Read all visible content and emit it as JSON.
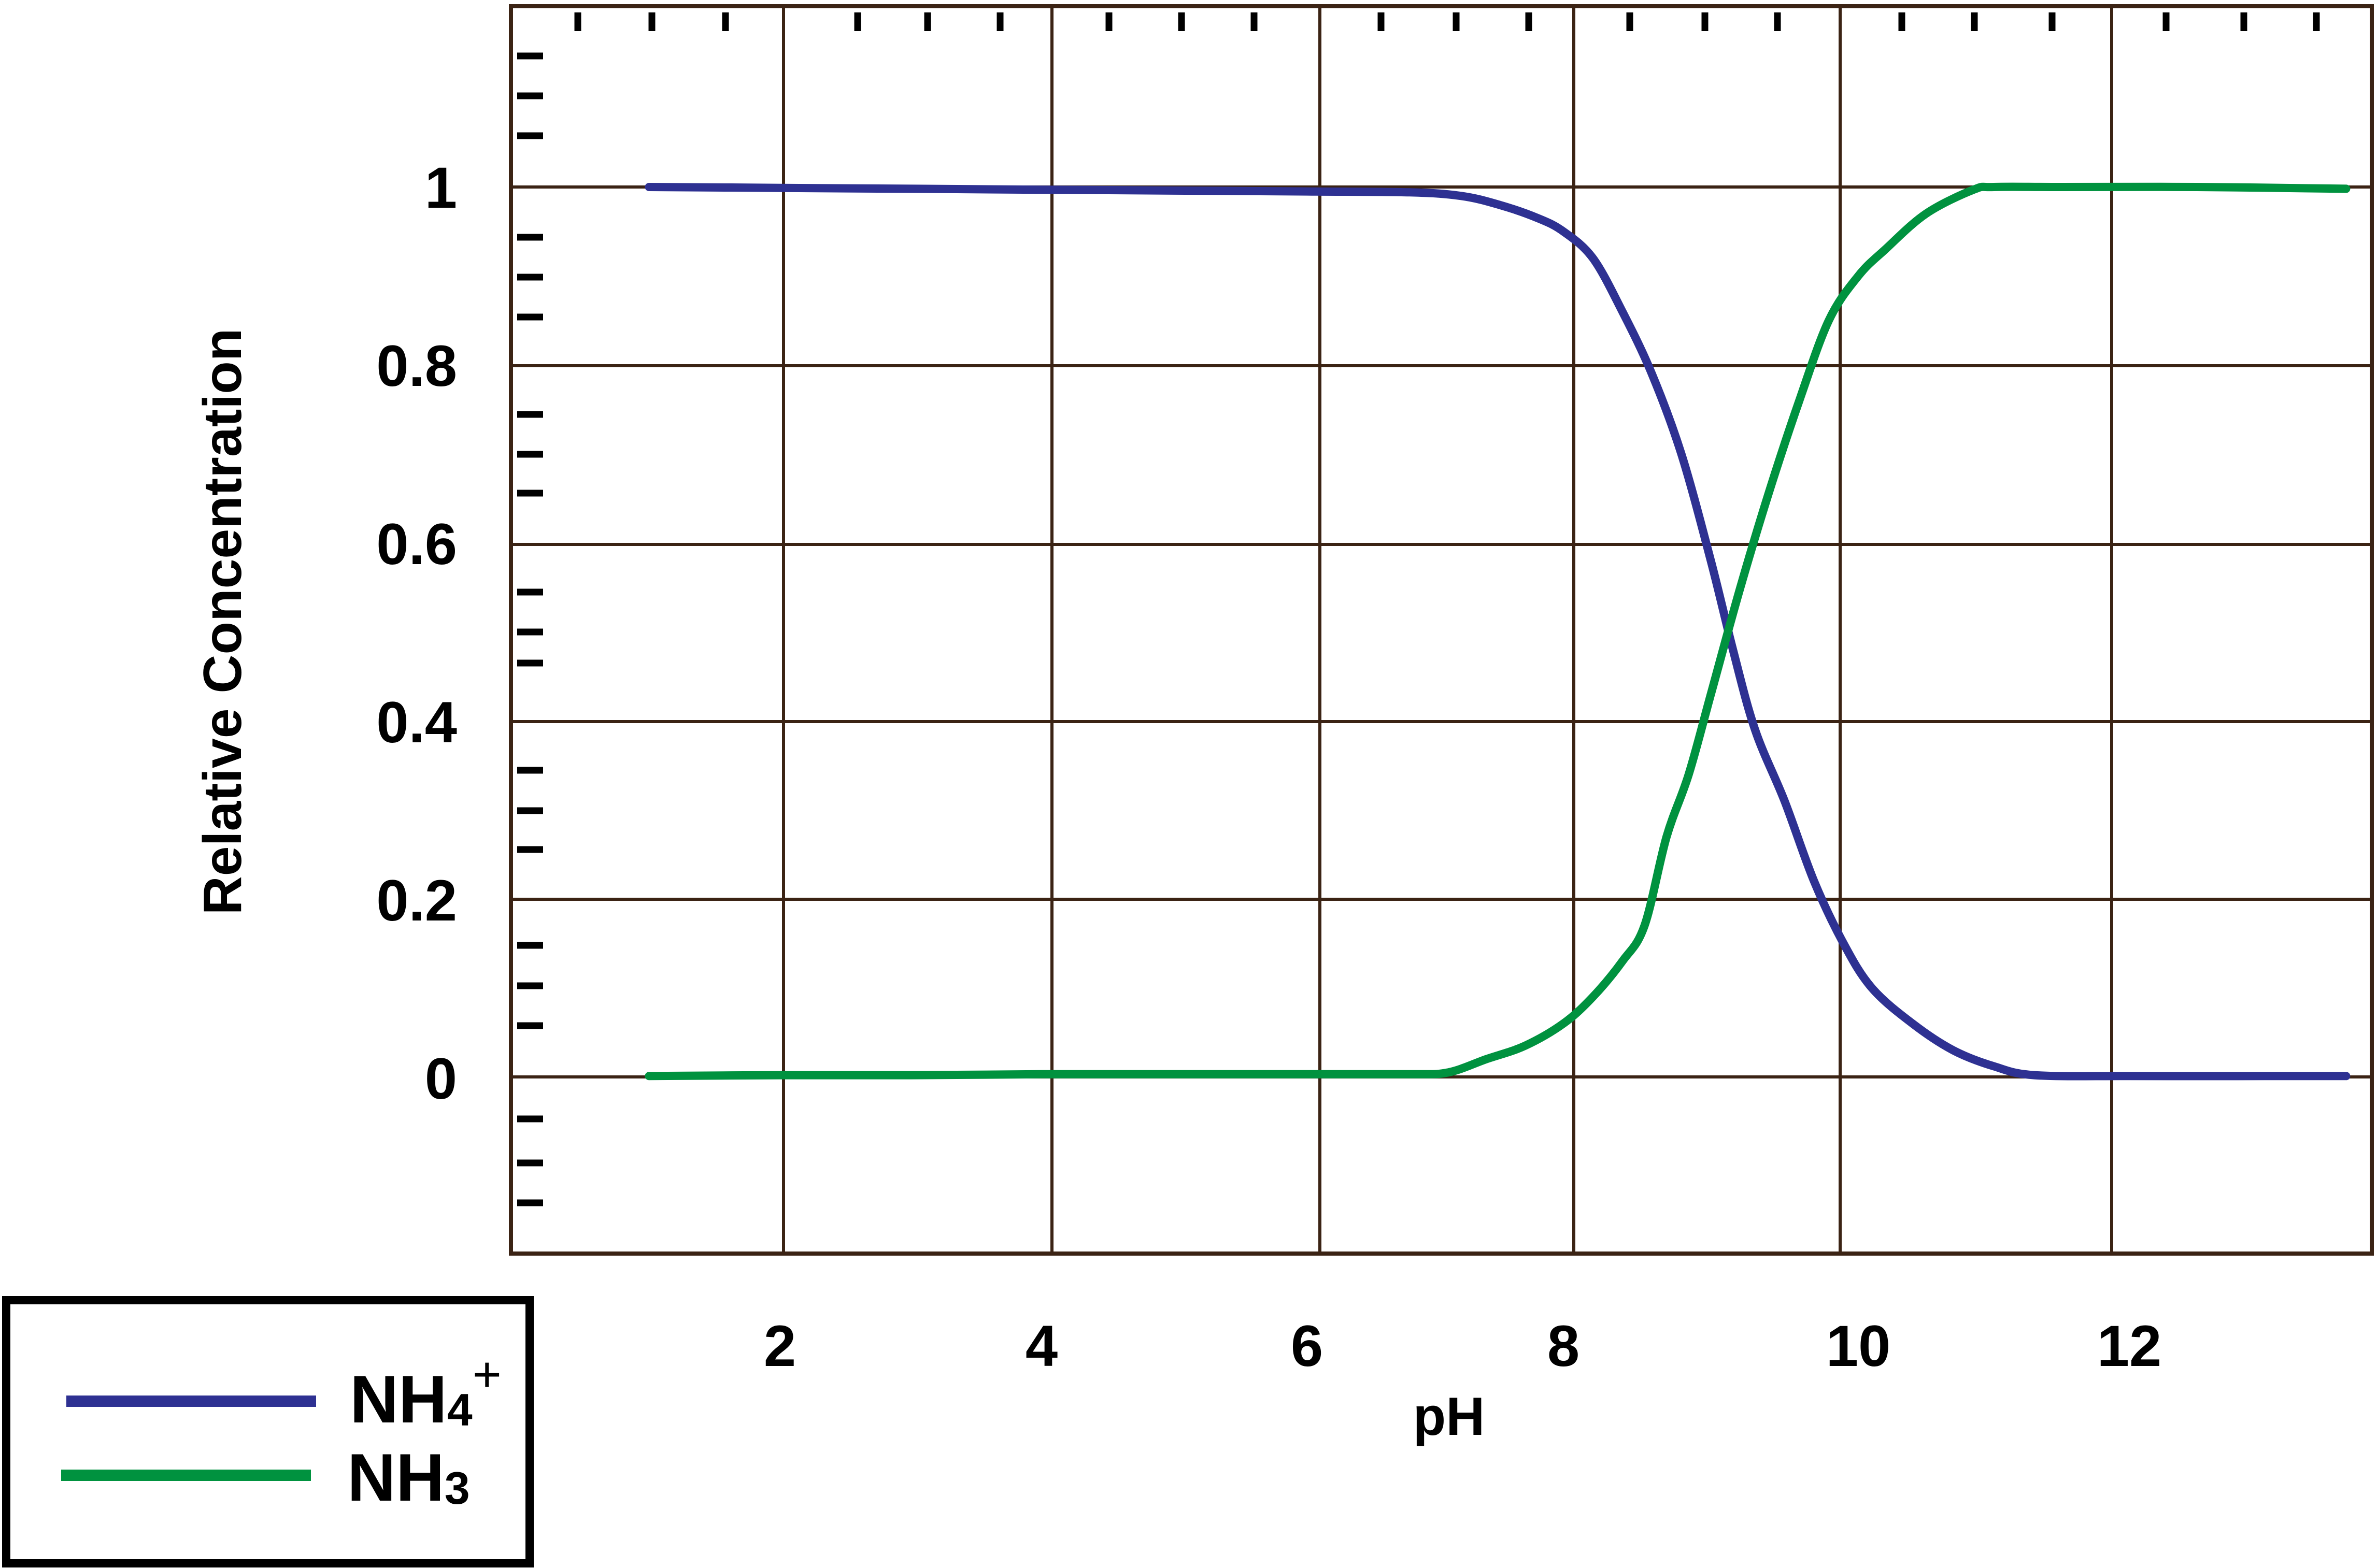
{
  "chart_data": {
    "type": "line",
    "xlabel": "pH",
    "ylabel": "Relative Concentration",
    "x_ticks": [
      "2",
      "4",
      "6",
      "8",
      "10",
      "12"
    ],
    "y_ticks": [
      "0",
      "0.2",
      "0.4",
      "0.6",
      "0.8",
      "1"
    ],
    "grid": true,
    "legend_position": "bottom-left",
    "series": [
      {
        "name_base": "NH",
        "name_sub": "4",
        "name_sup": "+",
        "color": "#2e3192",
        "points": [
          [
            1.0,
            1.0
          ],
          [
            2.0,
            0.999
          ],
          [
            3.0,
            0.998
          ],
          [
            4.0,
            0.997
          ],
          [
            5.0,
            0.996
          ],
          [
            6.0,
            0.995
          ],
          [
            6.8,
            0.994
          ],
          [
            7.2,
            0.99
          ],
          [
            7.5,
            0.98
          ],
          [
            7.8,
            0.965
          ],
          [
            8.0,
            0.95
          ],
          [
            8.2,
            0.92
          ],
          [
            8.4,
            0.86
          ],
          [
            8.6,
            0.79
          ],
          [
            8.8,
            0.7
          ],
          [
            9.0,
            0.58
          ],
          [
            9.15,
            0.48
          ],
          [
            9.3,
            0.39
          ],
          [
            9.5,
            0.31
          ],
          [
            9.7,
            0.22
          ],
          [
            9.9,
            0.15
          ],
          [
            10.1,
            0.1
          ],
          [
            10.4,
            0.06
          ],
          [
            10.7,
            0.03
          ],
          [
            11.0,
            0.012
          ],
          [
            11.3,
            0.002
          ],
          [
            12.0,
            0.001
          ],
          [
            13.0,
            0.001
          ],
          [
            13.6,
            0.001
          ]
        ]
      },
      {
        "name_base": "NH",
        "name_sub": "3",
        "name_sup": "",
        "color": "#00923f",
        "points": [
          [
            1.0,
            0.001
          ],
          [
            2.0,
            0.002
          ],
          [
            3.0,
            0.002
          ],
          [
            4.0,
            0.003
          ],
          [
            5.0,
            0.003
          ],
          [
            6.0,
            0.003
          ],
          [
            6.8,
            0.003
          ],
          [
            7.1,
            0.005
          ],
          [
            7.4,
            0.02
          ],
          [
            7.7,
            0.035
          ],
          [
            8.0,
            0.06
          ],
          [
            8.2,
            0.09
          ],
          [
            8.4,
            0.13
          ],
          [
            8.55,
            0.17
          ],
          [
            8.7,
            0.27
          ],
          [
            8.85,
            0.34
          ],
          [
            9.0,
            0.43
          ],
          [
            9.2,
            0.55
          ],
          [
            9.4,
            0.66
          ],
          [
            9.6,
            0.76
          ],
          [
            9.8,
            0.85
          ],
          [
            10.0,
            0.9
          ],
          [
            10.2,
            0.93
          ],
          [
            10.5,
            0.97
          ],
          [
            10.85,
            0.997
          ],
          [
            11.0,
            1.0
          ],
          [
            11.5,
            1.0
          ],
          [
            12.5,
            1.0
          ],
          [
            13.6,
            0.998
          ]
        ]
      }
    ]
  },
  "legend": {
    "items": [
      {
        "base": "NH",
        "sub": "4",
        "sup": "+",
        "color": "#2e3192"
      },
      {
        "base": "NH",
        "sub": "3",
        "sup": "",
        "color": "#00923f"
      }
    ]
  }
}
